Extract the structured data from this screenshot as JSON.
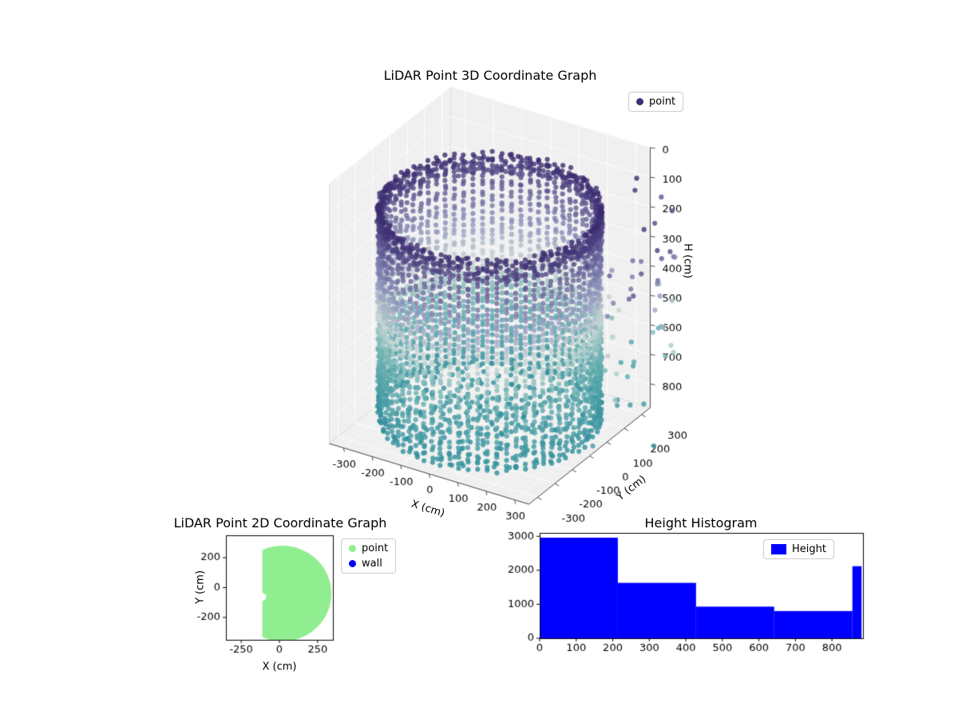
{
  "figure": {
    "background_color": "#ffffff"
  },
  "chart_data": [
    {
      "type": "scatter3d",
      "title": "LiDAR Point 3D Coordinate Graph",
      "xlabel": "X (cm)",
      "ylabel": "Y (cm)",
      "zlabel": "H (cm)",
      "legend": {
        "location": "upper right",
        "entries": [
          {
            "label": "point",
            "color": "#3d2e78",
            "marker": "dot"
          }
        ]
      },
      "xticks": [
        -300,
        -200,
        -100,
        0,
        100,
        200,
        300
      ],
      "yticks": [
        -300,
        -200,
        -100,
        0,
        100,
        200,
        300
      ],
      "zticks": [
        0,
        100,
        200,
        300,
        400,
        500,
        600,
        700,
        800
      ],
      "xlim_cm": [
        -350,
        350
      ],
      "ylim_cm": [
        -350,
        350
      ],
      "hlim_cm": [
        0,
        880
      ],
      "h_axis_inverted": true,
      "pane_color": "#f0f0f0",
      "grid_color": "#ffffff",
      "point_cloud": {
        "shape": "hollow cylinder wall + floor disc + right-side outliers",
        "radius_cm": 332,
        "h_top_cm": 140,
        "h_bottom_cm": 850,
        "wall_columns": 72,
        "points_per_column": 40,
        "rim_columns": 160,
        "rim_rows": 3,
        "rim_depth_cm": 70,
        "floor_rings": 9,
        "outlier_points": 60,
        "point_alpha": 0.8,
        "point_radius_px": 3.1,
        "seed": 11,
        "color_stops": [
          [
            0.0,
            "#3b2b6f"
          ],
          [
            0.32,
            "#8a8fba"
          ],
          [
            0.5,
            "#c9d8d4"
          ],
          [
            0.66,
            "#6fb3b2"
          ],
          [
            1.0,
            "#2e8e9b"
          ]
        ]
      }
    },
    {
      "type": "scatter",
      "title": "LiDAR Point 2D Coordinate Graph",
      "xlabel": "X (cm)",
      "ylabel": "Y (cm)",
      "xticks": [
        -250,
        0,
        250
      ],
      "yticks": [
        -200,
        0,
        200
      ],
      "xlim": [
        -350,
        350
      ],
      "ylim": [
        -350,
        350
      ],
      "legend": {
        "location": "outside upper right",
        "entries": [
          {
            "label": "point",
            "color": "#90ee90",
            "marker": "dot"
          },
          {
            "label": "wall",
            "color": "#0000ff",
            "marker": "dot"
          }
        ]
      },
      "region": {
        "shape": "disc clipped flat on left edge",
        "center": [
          20,
          -40
        ],
        "radius": 320,
        "flat_edge_x": -112,
        "notch": {
          "center": [
            -112,
            -62
          ],
          "radius": 26
        },
        "fill_color": "#90ee90"
      }
    },
    {
      "type": "bar",
      "title": "Height Histogram",
      "bar_color": "#0000ff",
      "legend": {
        "location": "upper right",
        "entries": [
          {
            "label": "Height",
            "color": "#0000ff",
            "marker": "rect"
          }
        ]
      },
      "bin_edges": [
        0,
        214,
        428,
        642,
        856,
        881
      ],
      "values": [
        2960,
        1630,
        930,
        800,
        2120
      ],
      "xticks": [
        0,
        100,
        200,
        300,
        400,
        500,
        600,
        700,
        800
      ],
      "yticks": [
        0,
        1000,
        2000,
        3000
      ],
      "xlim": [
        0,
        885
      ],
      "ylim": [
        0,
        3100
      ]
    }
  ]
}
